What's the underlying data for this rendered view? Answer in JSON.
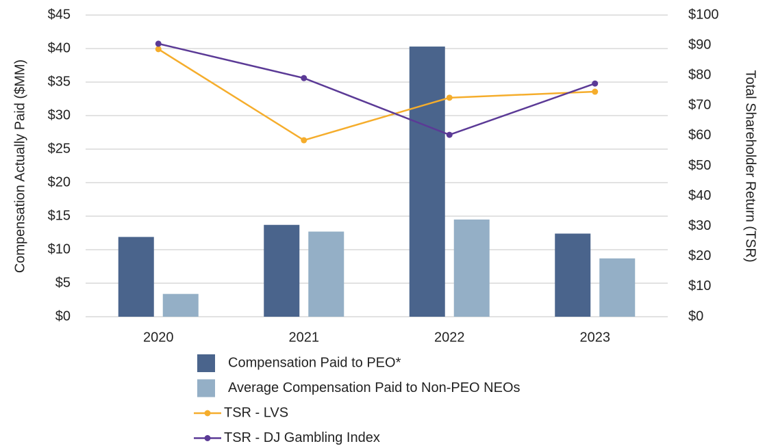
{
  "chart_data": {
    "type": "bar",
    "y_label": "Compensation Actually Paid ($MM)",
    "y2_label": "Total Shareholder Return (TSR)",
    "categories": [
      "2020",
      "2021",
      "2022",
      "2023"
    ],
    "series": [
      {
        "name": "Compensation Paid to PEO*",
        "type": "bar",
        "color": "#4a648c",
        "values": [
          11.9,
          13.7,
          40.3,
          12.4
        ]
      },
      {
        "name": "Average Compensation Paid to Non-PEO NEOs",
        "type": "bar",
        "color": "#94afc6",
        "values": [
          3.4,
          12.7,
          14.5,
          8.7
        ]
      },
      {
        "name": "TSR - LVS",
        "type": "line",
        "axis": "y2",
        "color": "#f5ad2c",
        "values": [
          88.7,
          58.5,
          72.6,
          74.6
        ]
      },
      {
        "name": "TSR - DJ Gambling Index",
        "type": "line",
        "axis": "y2",
        "color": "#5b3a96",
        "values": [
          90.5,
          79.1,
          60.3,
          77.3
        ]
      }
    ],
    "ylim": [
      0,
      45
    ],
    "yticks": [
      {
        "value": 0,
        "label": "$0"
      },
      {
        "value": 5,
        "label": "$5"
      },
      {
        "value": 10,
        "label": "$10"
      },
      {
        "value": 15,
        "label": "$15"
      },
      {
        "value": 20,
        "label": "$20"
      },
      {
        "value": 25,
        "label": "$25"
      },
      {
        "value": 30,
        "label": "$30"
      },
      {
        "value": 35,
        "label": "$35"
      },
      {
        "value": 40,
        "label": "$40"
      },
      {
        "value": 45,
        "label": "$45"
      }
    ],
    "y2lim": [
      0,
      100
    ],
    "y2ticks": [
      {
        "value": 0,
        "label": "$0"
      },
      {
        "value": 10,
        "label": "$10"
      },
      {
        "value": 20,
        "label": "$20"
      },
      {
        "value": 30,
        "label": "$30"
      },
      {
        "value": 40,
        "label": "$40"
      },
      {
        "value": 50,
        "label": "$50"
      },
      {
        "value": 60,
        "label": "$60"
      },
      {
        "value": 70,
        "label": "$70"
      },
      {
        "value": 80,
        "label": "$80"
      },
      {
        "value": 90,
        "label": "$90"
      },
      {
        "value": 100,
        "label": "$100"
      }
    ],
    "grid": true
  }
}
